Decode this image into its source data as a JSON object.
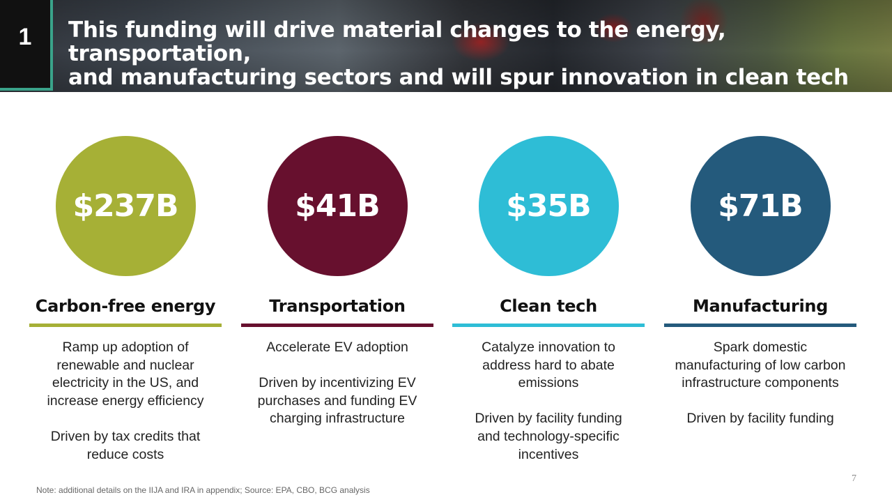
{
  "slide": {
    "number": "1",
    "title_line1": "This funding will drive material changes to the energy, transportation,",
    "title_line2": "and manufacturing sectors and will spur innovation in clean tech"
  },
  "colors": {
    "carbon_free": "#a6b036",
    "transportation": "#67102e",
    "clean_tech": "#2ebdd6",
    "manufacturing": "#245a7c",
    "accent": "#3aa38a"
  },
  "columns": [
    {
      "amount": "$237B",
      "heading": "Carbon-free energy",
      "desc_line1": "Ramp up adoption of",
      "desc_line2": "renewable and nuclear",
      "desc_line3": "electricity in the US, and",
      "desc_line4": "increase energy efficiency",
      "driver_line1": "Driven by tax credits that",
      "driver_line2": "reduce costs",
      "driver_line3": ""
    },
    {
      "amount": "$41B",
      "heading": "Transportation",
      "desc_line1": "Accelerate EV adoption",
      "desc_line2": "",
      "desc_line3": "",
      "desc_line4": "",
      "driver_line1": "Driven by incentivizing EV",
      "driver_line2": "purchases and funding EV",
      "driver_line3": "charging infrastructure"
    },
    {
      "amount": "$35B",
      "heading": "Clean tech",
      "desc_line1": "Catalyze innovation to",
      "desc_line2": "address hard to abate",
      "desc_line3": "emissions",
      "desc_line4": "",
      "driver_line1": "Driven by facility funding",
      "driver_line2": "and technology-specific",
      "driver_line3": "incentives"
    },
    {
      "amount": "$71B",
      "heading": "Manufacturing",
      "desc_line1": "Spark domestic",
      "desc_line2": "manufacturing of low carbon",
      "desc_line3": "infrastructure components",
      "desc_line4": "",
      "driver_line1": "Driven by facility funding",
      "driver_line2": "",
      "driver_line3": ""
    }
  ],
  "footnote": "Note: additional details on the IIJA and IRA in appendix; Source: EPA, CBO, BCG analysis",
  "page_number": "7"
}
